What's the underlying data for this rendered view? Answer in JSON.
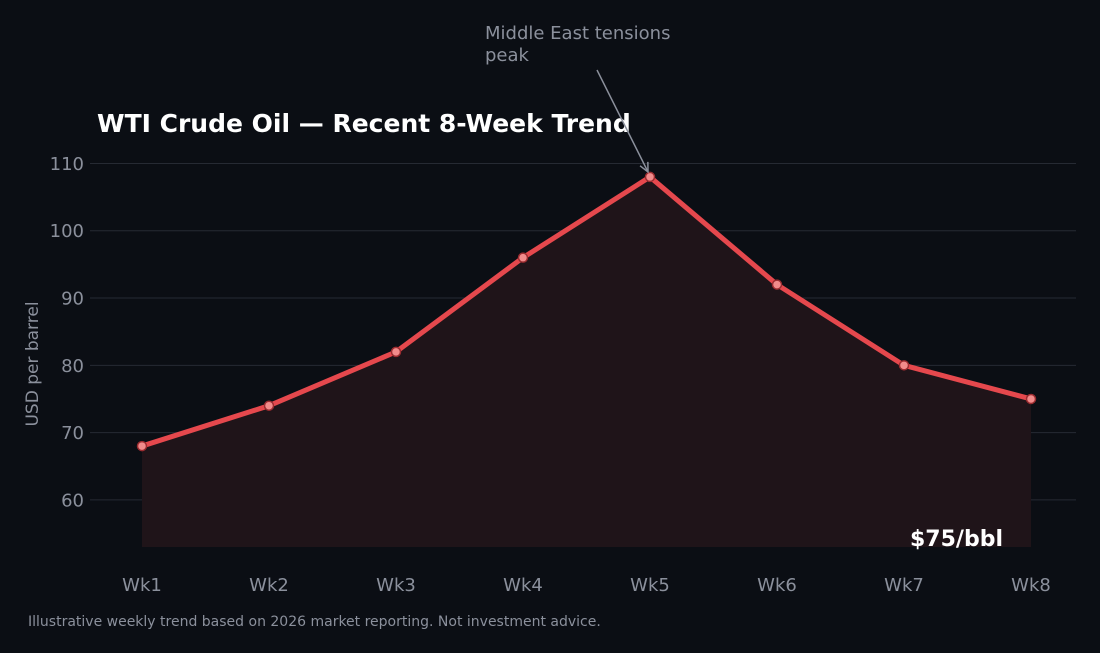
{
  "chart_data": {
    "type": "line",
    "title": "WTI Crude Oil — Recent 8-Week Trend",
    "xlabel": "",
    "ylabel": "USD per barrel",
    "categories": [
      "Wk1",
      "Wk2",
      "Wk3",
      "Wk4",
      "Wk5",
      "Wk6",
      "Wk7",
      "Wk8"
    ],
    "series": [
      {
        "values": [
          68,
          74,
          82,
          96,
          108,
          92,
          80,
          75
        ]
      }
    ],
    "yticks": [
      60,
      70,
      80,
      90,
      100,
      110
    ],
    "ylim": [
      53,
      112
    ],
    "grid": "horizontal",
    "annotation": {
      "lines": [
        "Middle East tensions",
        "peak"
      ],
      "target_category": "Wk5",
      "target_value": 108
    },
    "current_price_label": "$75/bbl",
    "colors": {
      "background": "#0b0e14",
      "line": "#e5484d",
      "marker_fill": "#f28b8b",
      "area_fill": "#1f1419",
      "grid": "#262a33",
      "text_muted": "#8b909c",
      "text_strong": "#ffffff"
    }
  },
  "footnote": "Illustrative weekly trend based on 2026 market reporting. Not investment advice."
}
